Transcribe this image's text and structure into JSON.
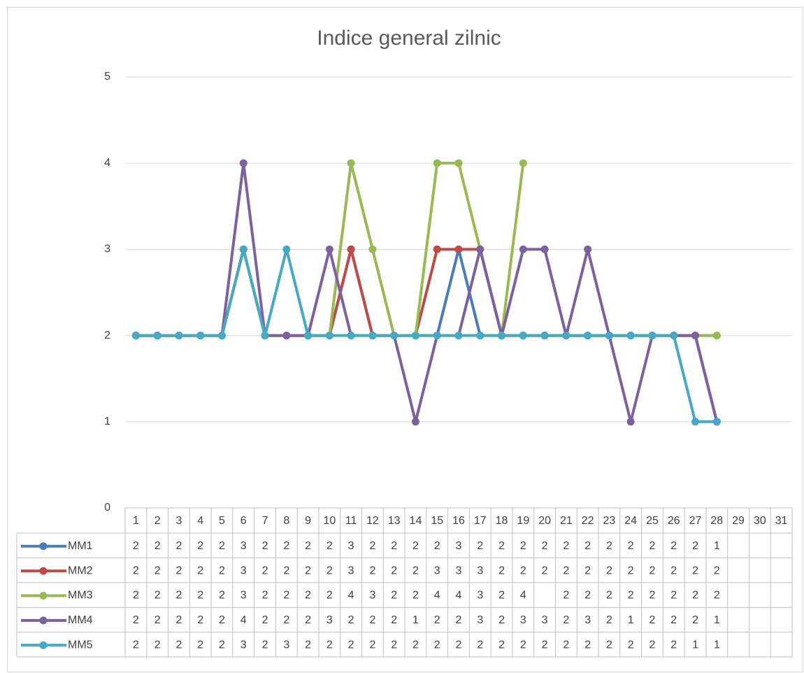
{
  "chart_data": {
    "type": "line",
    "title": "Indice general zilnic",
    "categories": [
      1,
      2,
      3,
      4,
      5,
      6,
      7,
      8,
      9,
      10,
      11,
      12,
      13,
      14,
      15,
      16,
      17,
      18,
      19,
      20,
      21,
      22,
      23,
      24,
      25,
      26,
      27,
      28,
      29,
      30,
      31
    ],
    "series": [
      {
        "name": "MM1",
        "color": "#4a7ebb",
        "values": [
          2,
          2,
          2,
          2,
          2,
          3,
          2,
          2,
          2,
          2,
          3,
          2,
          2,
          2,
          2,
          3,
          2,
          2,
          2,
          2,
          2,
          2,
          2,
          2,
          2,
          2,
          2,
          1,
          null,
          null,
          null
        ]
      },
      {
        "name": "MM2",
        "color": "#be4b48",
        "values": [
          2,
          2,
          2,
          2,
          2,
          3,
          2,
          2,
          2,
          2,
          3,
          2,
          2,
          2,
          3,
          3,
          3,
          2,
          2,
          2,
          2,
          2,
          2,
          2,
          2,
          2,
          2,
          2,
          null,
          null,
          null
        ]
      },
      {
        "name": "MM3",
        "color": "#98b954",
        "values": [
          2,
          2,
          2,
          2,
          2,
          3,
          2,
          2,
          2,
          2,
          4,
          3,
          2,
          2,
          4,
          4,
          3,
          2,
          4,
          null,
          2,
          2,
          2,
          2,
          2,
          2,
          2,
          2,
          null,
          null,
          null
        ]
      },
      {
        "name": "MM4",
        "color": "#7d60a0",
        "values": [
          2,
          2,
          2,
          2,
          2,
          4,
          2,
          2,
          2,
          3,
          2,
          2,
          2,
          1,
          2,
          2,
          3,
          2,
          3,
          3,
          2,
          3,
          2,
          1,
          2,
          2,
          2,
          1,
          null,
          null,
          null
        ]
      },
      {
        "name": "MM5",
        "color": "#46aac5",
        "values": [
          2,
          2,
          2,
          2,
          2,
          3,
          2,
          3,
          2,
          2,
          2,
          2,
          2,
          2,
          2,
          2,
          2,
          2,
          2,
          2,
          2,
          2,
          2,
          2,
          2,
          2,
          1,
          1,
          null,
          null,
          null
        ]
      }
    ],
    "ylim": [
      0,
      5
    ],
    "yticks": [
      0,
      1,
      2,
      3,
      4,
      5
    ],
    "grid": true
  }
}
